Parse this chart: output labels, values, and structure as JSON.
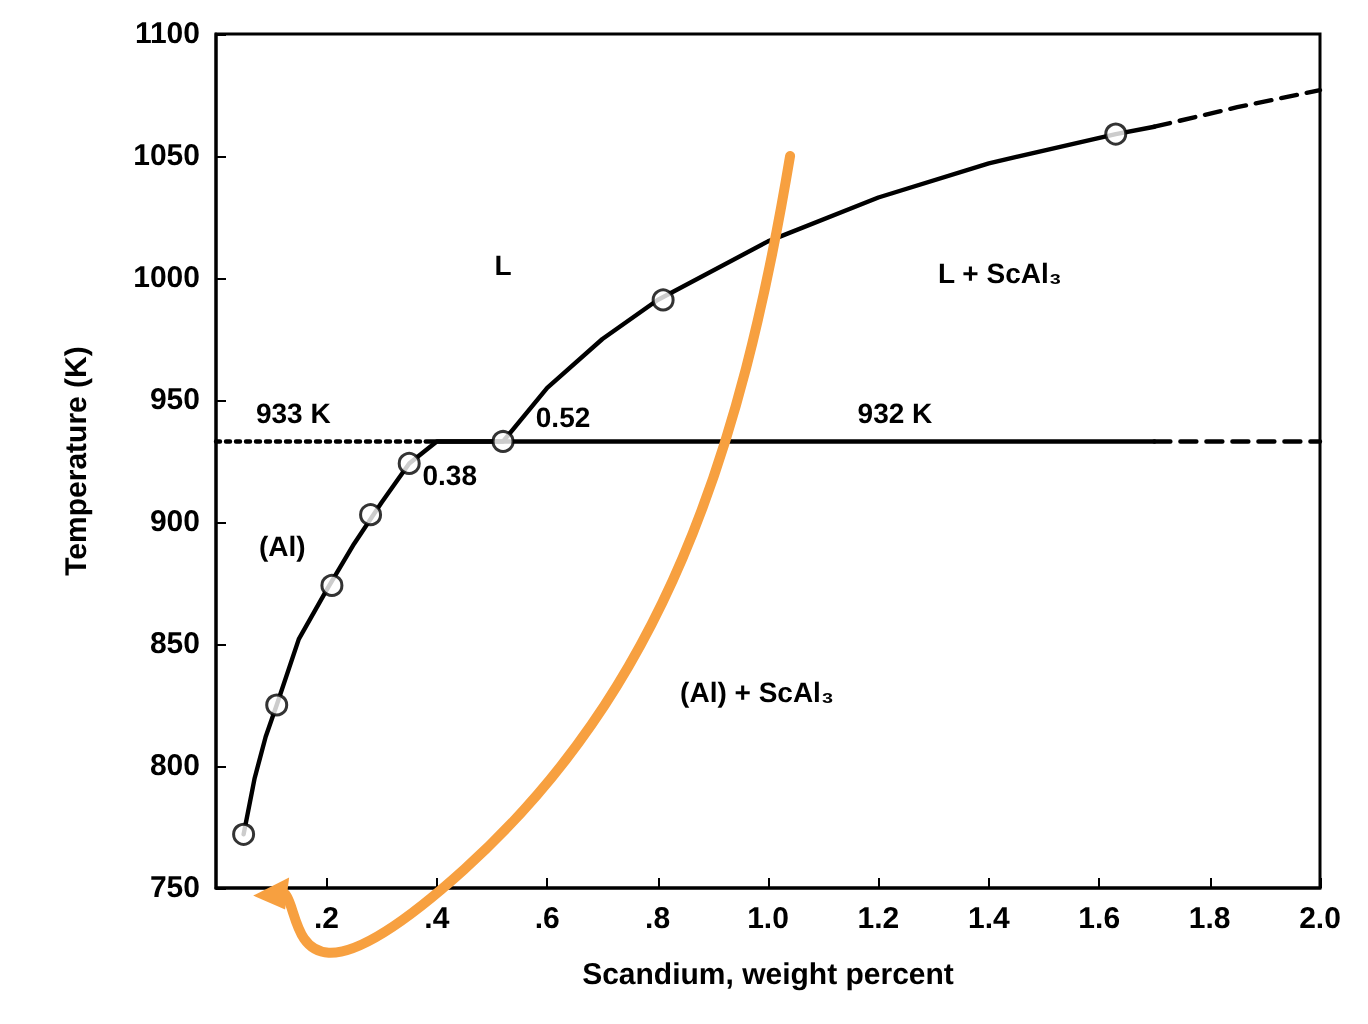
{
  "chart_data": {
    "type": "line",
    "xlabel": "Scandium, weight percent",
    "ylabel": "Temperature (K)",
    "xlim": [
      0,
      2.0
    ],
    "ylim": [
      750,
      1100
    ],
    "xticks": [
      {
        "value": 0.2,
        "label": ".2"
      },
      {
        "value": 0.4,
        "label": ".4"
      },
      {
        "value": 0.6,
        "label": ".6"
      },
      {
        "value": 0.8,
        "label": ".8"
      },
      {
        "value": 1.0,
        "label": "1.0"
      },
      {
        "value": 1.2,
        "label": "1.2"
      },
      {
        "value": 1.4,
        "label": "1.4"
      },
      {
        "value": 1.6,
        "label": "1.6"
      },
      {
        "value": 1.8,
        "label": "1.8"
      },
      {
        "value": 2.0,
        "label": "2.0"
      }
    ],
    "yticks": [
      750,
      800,
      850,
      900,
      950,
      1000,
      1050,
      1100
    ],
    "grid": false,
    "series": [
      {
        "type": "line",
        "color": "#000000",
        "marker": "none",
        "line_style": "solid",
        "x": [
          0.05,
          0.07,
          0.09,
          0.11,
          0.15,
          0.2,
          0.25,
          0.3,
          0.35,
          0.4,
          0.52,
          0.6,
          0.7,
          0.8,
          1.0,
          1.2,
          1.4,
          1.63,
          1.7
        ],
        "values": [
          772,
          795,
          812,
          825,
          852,
          872,
          891,
          908,
          924,
          933,
          933,
          955,
          975,
          991,
          1015,
          1033,
          1047,
          1059,
          1062
        ]
      },
      {
        "type": "line",
        "color": "#000000",
        "marker": "none",
        "line_style": "dashed",
        "x": [
          1.7,
          1.85,
          2.0
        ],
        "values": [
          1062,
          1070,
          1077
        ]
      },
      {
        "type": "line",
        "color": "#000000",
        "marker": "none",
        "line_style": "solid",
        "x": [
          0.38,
          1.7
        ],
        "values": [
          933,
          933
        ]
      },
      {
        "type": "line",
        "color": "#000000",
        "marker": "none",
        "line_style": "dashed",
        "x": [
          1.7,
          2.0
        ],
        "values": [
          933,
          933
        ]
      },
      {
        "type": "line",
        "color": "#000000",
        "marker": "none",
        "line_style": "dotted",
        "x": [
          0,
          0.38
        ],
        "values": [
          933,
          933
        ]
      },
      {
        "type": "scatter",
        "color": "#ffffff",
        "marker": "circle",
        "x": [
          0.05,
          0.11,
          0.21,
          0.28,
          0.35,
          0.52,
          0.81,
          1.63
        ],
        "values": [
          772,
          825,
          874,
          903,
          924,
          933,
          991,
          1059
        ]
      }
    ],
    "annotations": [
      "L",
      "L + ScAl₃",
      "(Al)",
      "(Al) + ScAl₃",
      {
        "text": "933 K",
        "x": 0.14,
        "y": 933
      },
      {
        "text": "932 K",
        "x": 1.23,
        "y": 933
      },
      {
        "text": "0.52",
        "x": 0.52,
        "y": 933
      },
      {
        "text": "0.38",
        "x": 0.38,
        "y": 933
      }
    ]
  }
}
